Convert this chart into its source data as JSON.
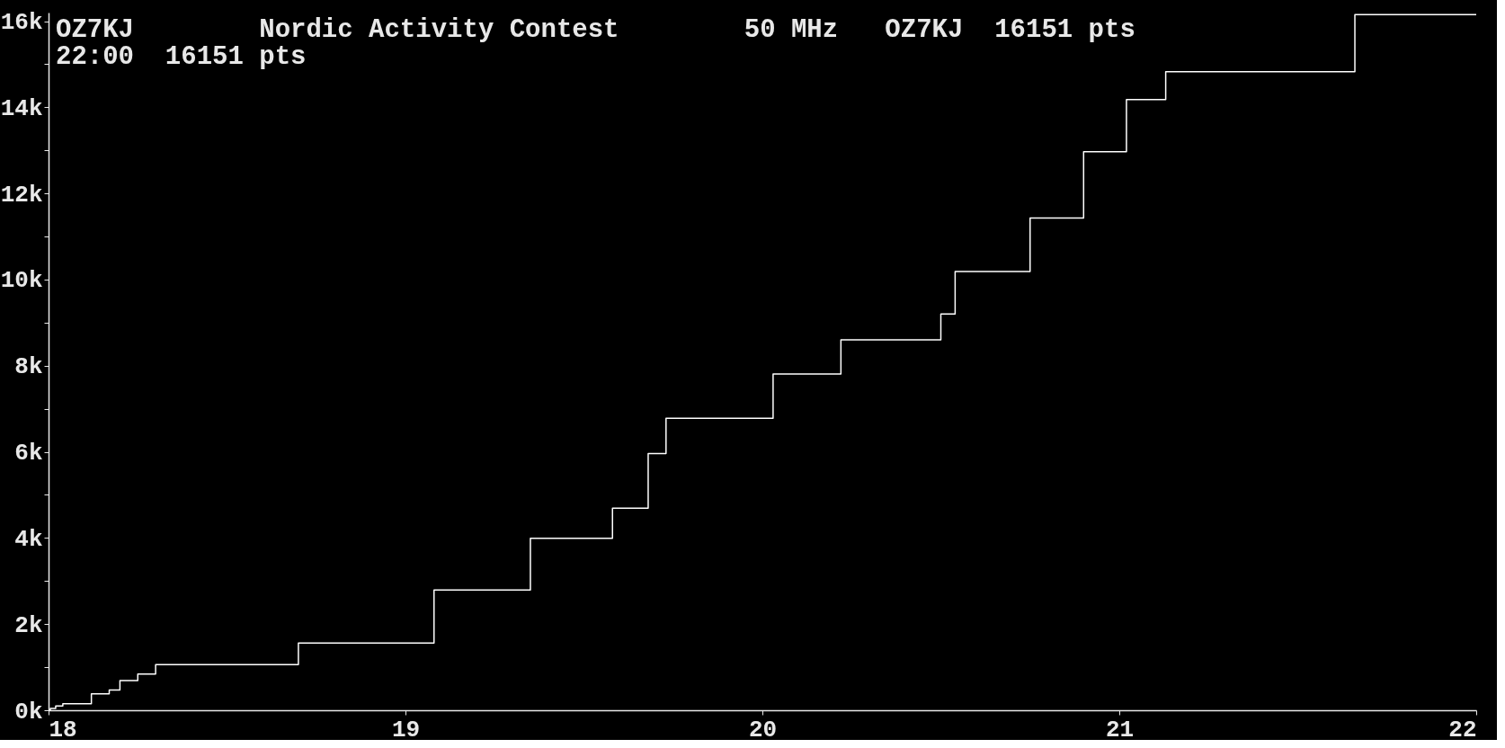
{
  "chart_data": {
    "type": "step",
    "title": "OZ7KJ        Nordic Activity Contest        50 MHz   OZ7KJ  16151 pts",
    "subtitle": "22:00  16151 pts",
    "x": [
      18,
      18.005,
      18.02,
      18.04,
      18.12,
      18.17,
      18.2,
      18.25,
      18.3,
      18.7,
      19.08,
      19.35,
      19.58,
      19.68,
      19.73,
      20.03,
      20.22,
      20.5,
      20.54,
      20.75,
      20.9,
      21.02,
      21.13,
      21.66,
      22
    ],
    "series": [
      {
        "color": "#ffffff",
        "values": [
          0,
          40,
          100,
          150,
          380,
          470,
          690,
          840,
          1060,
          1560,
          2790,
          3990,
          4690,
          5960,
          6780,
          7810,
          8600,
          9200,
          10190,
          11430,
          12970,
          14180,
          14830,
          16151,
          16151
        ]
      }
    ],
    "xlim": [
      18,
      22
    ],
    "xticks": [
      18,
      19,
      20,
      21,
      22
    ],
    "ylim": [
      0,
      16200
    ],
    "yticks": [
      {
        "value": 0,
        "label": "0k"
      },
      {
        "value": 1000,
        "label": null
      },
      {
        "value": 2000,
        "label": "2k"
      },
      {
        "value": 3000,
        "label": null
      },
      {
        "value": 4000,
        "label": "4k"
      },
      {
        "value": 5000,
        "label": null
      },
      {
        "value": 6000,
        "label": "6k"
      },
      {
        "value": 7000,
        "label": null
      },
      {
        "value": 8000,
        "label": "8k"
      },
      {
        "value": 9000,
        "label": null
      },
      {
        "value": 10000,
        "label": "10k"
      },
      {
        "value": 11000,
        "label": null
      },
      {
        "value": 12000,
        "label": "12k"
      },
      {
        "value": 13000,
        "label": null
      },
      {
        "value": 14000,
        "label": "14k"
      },
      {
        "value": 15000,
        "label": null
      },
      {
        "value": 16000,
        "label": "16k"
      }
    ],
    "grid": false,
    "marker": "none",
    "line_style": "solid"
  }
}
